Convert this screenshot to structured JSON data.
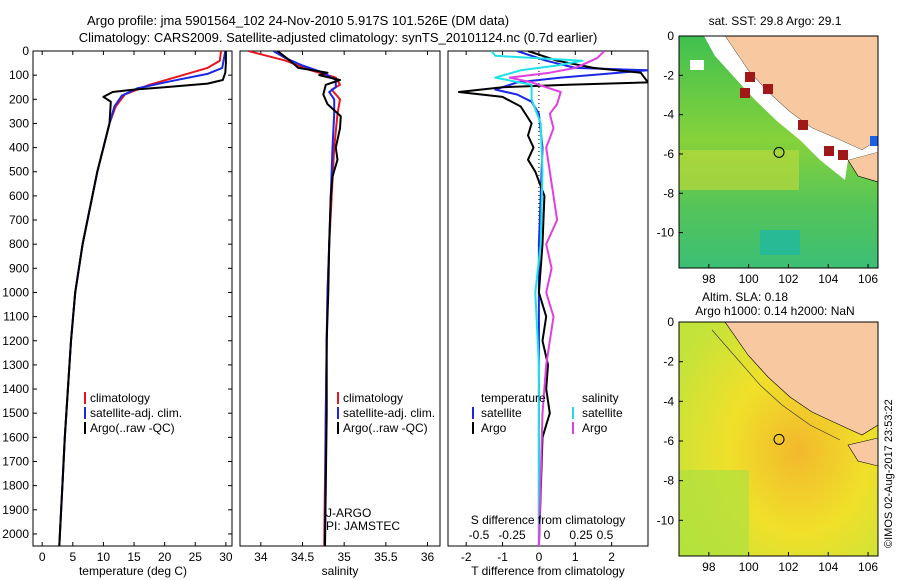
{
  "title_line1": "Argo profile: jma 5901564_102 24-Nov-2010 5.917S 101.526E (DM data)",
  "title_line2": "Climatology: CARS2009. Satellite-adjusted climatology: synTS_20101124.nc (0.7d earlier)",
  "colors": {
    "climatology": "#e8141e",
    "satellite": "#1a28e6",
    "argo": "#000000",
    "salinity_sat": "#20e0e8",
    "salinity_argo": "#e040e0",
    "land": "#f8c8a0"
  },
  "chart_data": [
    {
      "type": "line",
      "id": "temperature",
      "xlabel": "temperature (deg C)",
      "xlim": [
        -1.5,
        31
      ],
      "ylim": [
        2050,
        0
      ],
      "xticks": [
        0,
        5,
        10,
        15,
        20,
        25,
        30
      ],
      "yticks": [
        0,
        100,
        200,
        300,
        400,
        500,
        600,
        700,
        800,
        900,
        1000,
        1100,
        1200,
        1300,
        1400,
        1500,
        1600,
        1700,
        1800,
        1900,
        2000
      ],
      "legend": [
        "climatology",
        "satellite-adj. clim.",
        "Argo(..raw -QC)"
      ],
      "series": [
        {
          "name": "climatology",
          "color_key": "climatology",
          "points": [
            [
              29.2,
              0
            ],
            [
              29,
              40
            ],
            [
              27,
              70
            ],
            [
              23,
              100
            ],
            [
              17.5,
              140
            ],
            [
              13.5,
              180
            ],
            [
              12,
              230
            ],
            [
              11,
              300
            ],
            [
              10,
              400
            ],
            [
              9,
              500
            ],
            [
              8.2,
              600
            ],
            [
              7.4,
              700
            ],
            [
              6.6,
              800
            ],
            [
              6,
              900
            ],
            [
              5.4,
              1000
            ],
            [
              4.7,
              1200
            ],
            [
              4.2,
              1400
            ],
            [
              3.7,
              1600
            ],
            [
              3.3,
              1800
            ],
            [
              2.9,
              2000
            ],
            [
              2.8,
              2050
            ]
          ]
        },
        {
          "name": "satellite-adj. clim.",
          "color_key": "satellite",
          "points": [
            [
              29.9,
              0
            ],
            [
              29.7,
              30
            ],
            [
              29.4,
              70
            ],
            [
              27,
              95
            ],
            [
              21,
              125
            ],
            [
              15.5,
              155
            ],
            [
              13,
              185
            ],
            [
              11.8,
              230
            ],
            [
              11,
              300
            ],
            [
              10,
              400
            ],
            [
              9,
              500
            ],
            [
              8.2,
              600
            ],
            [
              7.4,
              700
            ],
            [
              6.6,
              800
            ],
            [
              6,
              900
            ],
            [
              5.4,
              1000
            ],
            [
              4.7,
              1200
            ],
            [
              4.2,
              1400
            ],
            [
              3.7,
              1600
            ],
            [
              3.3,
              1800
            ],
            [
              2.9,
              2000
            ],
            [
              2.8,
              2050
            ]
          ]
        },
        {
          "name": "Argo(..raw -QC)",
          "color_key": "argo",
          "points": [
            [
              30,
              0
            ],
            [
              30,
              50
            ],
            [
              29.9,
              90
            ],
            [
              29.5,
              120
            ],
            [
              27,
              135
            ],
            [
              20,
              150
            ],
            [
              15,
              160
            ],
            [
              11.5,
              170
            ],
            [
              10,
              190
            ],
            [
              11.2,
              210
            ],
            [
              11,
              300
            ],
            [
              10,
              400
            ],
            [
              9,
              500
            ],
            [
              8.2,
              600
            ],
            [
              7.4,
              700
            ],
            [
              6.6,
              800
            ],
            [
              6,
              900
            ],
            [
              5.4,
              1000
            ],
            [
              4.7,
              1200
            ],
            [
              4.2,
              1400
            ],
            [
              3.7,
              1600
            ],
            [
              3.3,
              1800
            ],
            [
              2.9,
              2000
            ],
            [
              2.8,
              2050
            ]
          ]
        }
      ]
    },
    {
      "type": "line",
      "id": "salinity",
      "xlabel": "salinity",
      "xlim": [
        33.75,
        36.15
      ],
      "ylim": [
        2050,
        0
      ],
      "xticks": [
        34,
        34.5,
        35,
        35.5,
        36
      ],
      "legend": [
        "climatology",
        "satellite-adj. clim.",
        "Argo(..raw -QC)"
      ],
      "annotations": [
        "J-ARGO",
        "PI: JAMSTEC"
      ],
      "series": [
        {
          "name": "climatology",
          "color_key": "climatology",
          "points": [
            [
              33.85,
              0
            ],
            [
              34.3,
              40
            ],
            [
              34.6,
              80
            ],
            [
              34.9,
              110
            ],
            [
              34.95,
              140
            ],
            [
              34.85,
              160
            ],
            [
              34.95,
              200
            ],
            [
              34.92,
              260
            ],
            [
              34.88,
              400
            ],
            [
              34.85,
              600
            ],
            [
              34.82,
              800
            ],
            [
              34.8,
              1000
            ],
            [
              34.79,
              1200
            ],
            [
              34.78,
              1500
            ],
            [
              34.76,
              2050
            ]
          ]
        },
        {
          "name": "satellite-adj. clim.",
          "color_key": "satellite",
          "points": [
            [
              34.15,
              0
            ],
            [
              34.3,
              30
            ],
            [
              34.5,
              60
            ],
            [
              34.75,
              90
            ],
            [
              34.9,
              120
            ],
            [
              34.9,
              150
            ],
            [
              34.82,
              170
            ],
            [
              34.88,
              200
            ],
            [
              34.88,
              260
            ],
            [
              34.86,
              400
            ],
            [
              34.84,
              600
            ],
            [
              34.82,
              800
            ],
            [
              34.8,
              1000
            ],
            [
              34.79,
              1200
            ],
            [
              34.78,
              1500
            ],
            [
              34.77,
              2050
            ]
          ]
        },
        {
          "name": "Argo(..raw -QC)",
          "color_key": "argo",
          "points": [
            [
              34.2,
              0
            ],
            [
              34.35,
              40
            ],
            [
              34.45,
              70
            ],
            [
              34.8,
              90
            ],
            [
              34.7,
              100
            ],
            [
              34.95,
              120
            ],
            [
              34.78,
              140
            ],
            [
              34.75,
              180
            ],
            [
              34.8,
              220
            ],
            [
              34.96,
              270
            ],
            [
              34.95,
              320
            ],
            [
              34.9,
              400
            ],
            [
              34.92,
              450
            ],
            [
              34.86,
              520
            ],
            [
              34.84,
              600
            ],
            [
              34.82,
              800
            ],
            [
              34.81,
              1000
            ],
            [
              34.79,
              1200
            ],
            [
              34.79,
              1500
            ],
            [
              34.78,
              1800
            ],
            [
              34.77,
              2050
            ]
          ]
        }
      ]
    },
    {
      "type": "line",
      "id": "difference",
      "xlabel": "T difference from climatology",
      "xlabel_top": "S difference from climatology",
      "xlim": [
        -2.5,
        3
      ],
      "ylim": [
        2050,
        0
      ],
      "xticks": [
        -2,
        -1,
        0,
        1,
        2
      ],
      "xticks_s_labels": [
        "-0.5",
        "-0.25",
        "0",
        "0.25",
        "0.5"
      ],
      "legend_temperature": [
        "temperature",
        "satellite",
        "Argo"
      ],
      "legend_salinity": [
        "salinity",
        "satellite",
        "Argo"
      ],
      "series": [
        {
          "name": "temperature satellite",
          "color_key": "satellite",
          "points": [
            [
              -0.6,
              0
            ],
            [
              0.2,
              40
            ],
            [
              1,
              70
            ],
            [
              3,
              80
            ],
            [
              2.2,
              90
            ],
            [
              0.6,
              110
            ],
            [
              -0.6,
              130
            ],
            [
              -1.2,
              160
            ],
            [
              -0.6,
              180
            ],
            [
              -0.2,
              210
            ],
            [
              0,
              260
            ],
            [
              0.1,
              400
            ],
            [
              0.05,
              600
            ],
            [
              0,
              800
            ],
            [
              0,
              1200
            ],
            [
              0,
              2050
            ]
          ]
        },
        {
          "name": "temperature Argo",
          "color_key": "argo",
          "points": [
            [
              -0.3,
              0
            ],
            [
              0.5,
              40
            ],
            [
              1.5,
              70
            ],
            [
              2.8,
              90
            ],
            [
              3,
              130
            ],
            [
              0.8,
              140
            ],
            [
              -1,
              150
            ],
            [
              -2.2,
              170
            ],
            [
              -1,
              190
            ],
            [
              -0.5,
              230
            ],
            [
              -0.2,
              300
            ],
            [
              -0.3,
              350
            ],
            [
              -0.15,
              400
            ],
            [
              -0.3,
              450
            ],
            [
              -0.1,
              500
            ],
            [
              0.15,
              600
            ],
            [
              0.1,
              800
            ],
            [
              0,
              1000
            ],
            [
              0.2,
              1100
            ],
            [
              0.1,
              1200
            ],
            [
              0.25,
              1300
            ],
            [
              0.2,
              1400
            ],
            [
              0.3,
              1500
            ],
            [
              0.1,
              1600
            ],
            [
              0,
              2050
            ]
          ]
        },
        {
          "name": "salinity satellite",
          "color_key": "salinity_sat",
          "points": [
            [
              -1.3,
              0
            ],
            [
              -1.2,
              20
            ],
            [
              1.2,
              40
            ],
            [
              0.5,
              60
            ],
            [
              -0.5,
              80
            ],
            [
              -1.2,
              110
            ],
            [
              -0.2,
              140
            ],
            [
              -0.2,
              200
            ],
            [
              0.05,
              300
            ],
            [
              0.1,
              500
            ],
            [
              0.05,
              800
            ],
            [
              -0.1,
              1000
            ],
            [
              0,
              1300
            ],
            [
              0,
              2050
            ]
          ]
        },
        {
          "name": "salinity Argo",
          "color_key": "salinity_argo",
          "points": [
            [
              1.8,
              0
            ],
            [
              1.6,
              30
            ],
            [
              1,
              70
            ],
            [
              0.3,
              90
            ],
            [
              -0.8,
              110
            ],
            [
              -0.2,
              130
            ],
            [
              0.6,
              170
            ],
            [
              0.5,
              220
            ],
            [
              0.3,
              260
            ],
            [
              0.4,
              320
            ],
            [
              0.2,
              400
            ],
            [
              0.3,
              500
            ],
            [
              0.4,
              600
            ],
            [
              0.5,
              700
            ],
            [
              0.2,
              800
            ],
            [
              0.35,
              900
            ],
            [
              0.2,
              1000
            ],
            [
              0.4,
              1100
            ],
            [
              0.2,
              1300
            ],
            [
              0.1,
              1500
            ],
            [
              0,
              2050
            ]
          ]
        }
      ]
    },
    {
      "type": "heatmap",
      "id": "sst_map",
      "title": "sat. SST: 29.8  Argo: 29.1",
      "xlim": [
        96.5,
        106.5
      ],
      "ylim": [
        -11.8,
        0
      ],
      "xticks": [
        98,
        100,
        102,
        104,
        106
      ],
      "yticks": [
        0,
        -2,
        -4,
        -6,
        -8,
        -10
      ],
      "profile_location": [
        101.526,
        -5.917
      ]
    },
    {
      "type": "heatmap",
      "id": "sla_map",
      "title_line1": "Altim. SLA: 0.18",
      "title_line2": "Argo h1000: 0.14 h2000: NaN",
      "xlim": [
        96.5,
        106.5
      ],
      "ylim": [
        -11.8,
        0
      ],
      "xticks": [
        98,
        100,
        102,
        104,
        106
      ],
      "yticks": [
        0,
        -2,
        -4,
        -6,
        -8,
        -10
      ],
      "profile_location": [
        101.526,
        -5.917
      ]
    }
  ],
  "credit": "©IMOS 02-Aug-2017 23:53:22"
}
